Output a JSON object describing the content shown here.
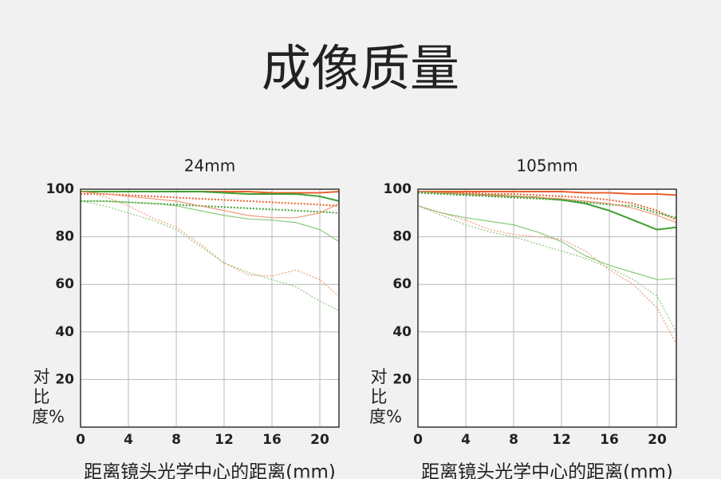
{
  "title": "成像质量",
  "chart_data": [
    {
      "type": "line",
      "title": "24mm",
      "xlabel": "距离镜头光学中心的距离(mm)",
      "ylabel": "对比度%",
      "x": [
        0,
        2,
        4,
        6,
        8,
        10,
        12,
        14,
        16,
        18,
        20,
        21.6
      ],
      "xlim": [
        0,
        21.6
      ],
      "xticks": [
        0,
        4,
        8,
        12,
        16,
        20
      ],
      "ylim": [
        0,
        100
      ],
      "yticks": [
        20,
        40,
        60,
        80,
        100
      ],
      "grid": true,
      "series": [
        {
          "color": "#e8602c",
          "style": "solid",
          "weight": "thick",
          "values": [
            99,
            99,
            99,
            99,
            99,
            99,
            99,
            99,
            98.5,
            98.5,
            98.5,
            99
          ]
        },
        {
          "color": "#3f9f2f",
          "style": "solid",
          "weight": "thick",
          "values": [
            99,
            99,
            99,
            99,
            99,
            99,
            98.5,
            98,
            98,
            98,
            97,
            95
          ]
        },
        {
          "color": "#e8602c",
          "style": "dotted",
          "weight": "thick",
          "values": [
            98,
            98,
            97.5,
            97,
            96.5,
            96,
            95.5,
            95,
            94.5,
            94,
            93.5,
            93
          ]
        },
        {
          "color": "#3f9f2f",
          "style": "dotted",
          "weight": "thick",
          "values": [
            95,
            95,
            94.5,
            94,
            93.5,
            93,
            92.5,
            92,
            91.5,
            91,
            90.5,
            90
          ]
        },
        {
          "color": "#f0916a",
          "style": "solid",
          "weight": "thin",
          "values": [
            99,
            98,
            97,
            96,
            95,
            93,
            91,
            89,
            88,
            88,
            90,
            94
          ]
        },
        {
          "color": "#7cc46e",
          "style": "solid",
          "weight": "thin",
          "values": [
            95,
            95,
            94.5,
            94,
            93,
            91,
            89,
            87.5,
            87,
            86,
            83,
            78
          ]
        },
        {
          "color": "#f0916a",
          "style": "dotted",
          "weight": "thin",
          "values": [
            99,
            97,
            93,
            88,
            84,
            77,
            69,
            64,
            63.5,
            66,
            62,
            55
          ]
        },
        {
          "color": "#7cc46e",
          "style": "dotted",
          "weight": "thin",
          "values": [
            95,
            93,
            90,
            87,
            83,
            76,
            69,
            65,
            62,
            59,
            53,
            49
          ]
        }
      ]
    },
    {
      "type": "line",
      "title": "105mm",
      "xlabel": "距离镜头光学中心的距离(mm)",
      "ylabel": "对比度%",
      "x": [
        0,
        2,
        4,
        6,
        8,
        10,
        12,
        14,
        16,
        18,
        20,
        21.6
      ],
      "xlim": [
        0,
        21.6
      ],
      "xticks": [
        0,
        4,
        8,
        12,
        16,
        20
      ],
      "ylim": [
        0,
        100
      ],
      "yticks": [
        20,
        40,
        60,
        80,
        100
      ],
      "grid": true,
      "series": [
        {
          "color": "#e8602c",
          "style": "solid",
          "weight": "thick",
          "values": [
            99,
            99,
            99,
            99,
            99,
            99,
            99,
            98.5,
            98.5,
            98,
            98,
            97.5
          ]
        },
        {
          "color": "#3f9f2f",
          "style": "solid",
          "weight": "thick",
          "values": [
            99,
            98.5,
            98,
            97.5,
            97,
            96.5,
            95.5,
            94,
            91,
            87,
            83,
            84
          ]
        },
        {
          "color": "#e8602c",
          "style": "dotted",
          "weight": "thick",
          "values": [
            99,
            98.5,
            98.5,
            98,
            98,
            97.5,
            97,
            96.5,
            95.5,
            94,
            91,
            87
          ]
        },
        {
          "color": "#3f9f2f",
          "style": "dotted",
          "weight": "thick",
          "values": [
            98.5,
            98,
            97.5,
            97,
            96.5,
            96,
            95.5,
            94.5,
            93.5,
            93,
            90,
            88
          ]
        },
        {
          "color": "#f0916a",
          "style": "solid",
          "weight": "thin",
          "values": [
            99,
            98.5,
            98,
            97.5,
            97,
            96.5,
            96,
            95,
            94,
            92,
            89,
            86
          ]
        },
        {
          "color": "#7cc46e",
          "style": "solid",
          "weight": "thin",
          "values": [
            93,
            90,
            88,
            86.5,
            85,
            82,
            78,
            72,
            68,
            65,
            62,
            62.5
          ]
        },
        {
          "color": "#f0916a",
          "style": "dotted",
          "weight": "thin",
          "values": [
            93,
            90,
            87,
            83,
            81,
            80,
            79,
            74,
            66,
            60,
            50,
            35
          ]
        },
        {
          "color": "#7cc46e",
          "style": "dotted",
          "weight": "thin",
          "values": [
            93,
            89,
            85,
            82,
            80,
            77,
            74,
            71,
            67,
            62,
            55,
            40
          ]
        }
      ]
    }
  ]
}
